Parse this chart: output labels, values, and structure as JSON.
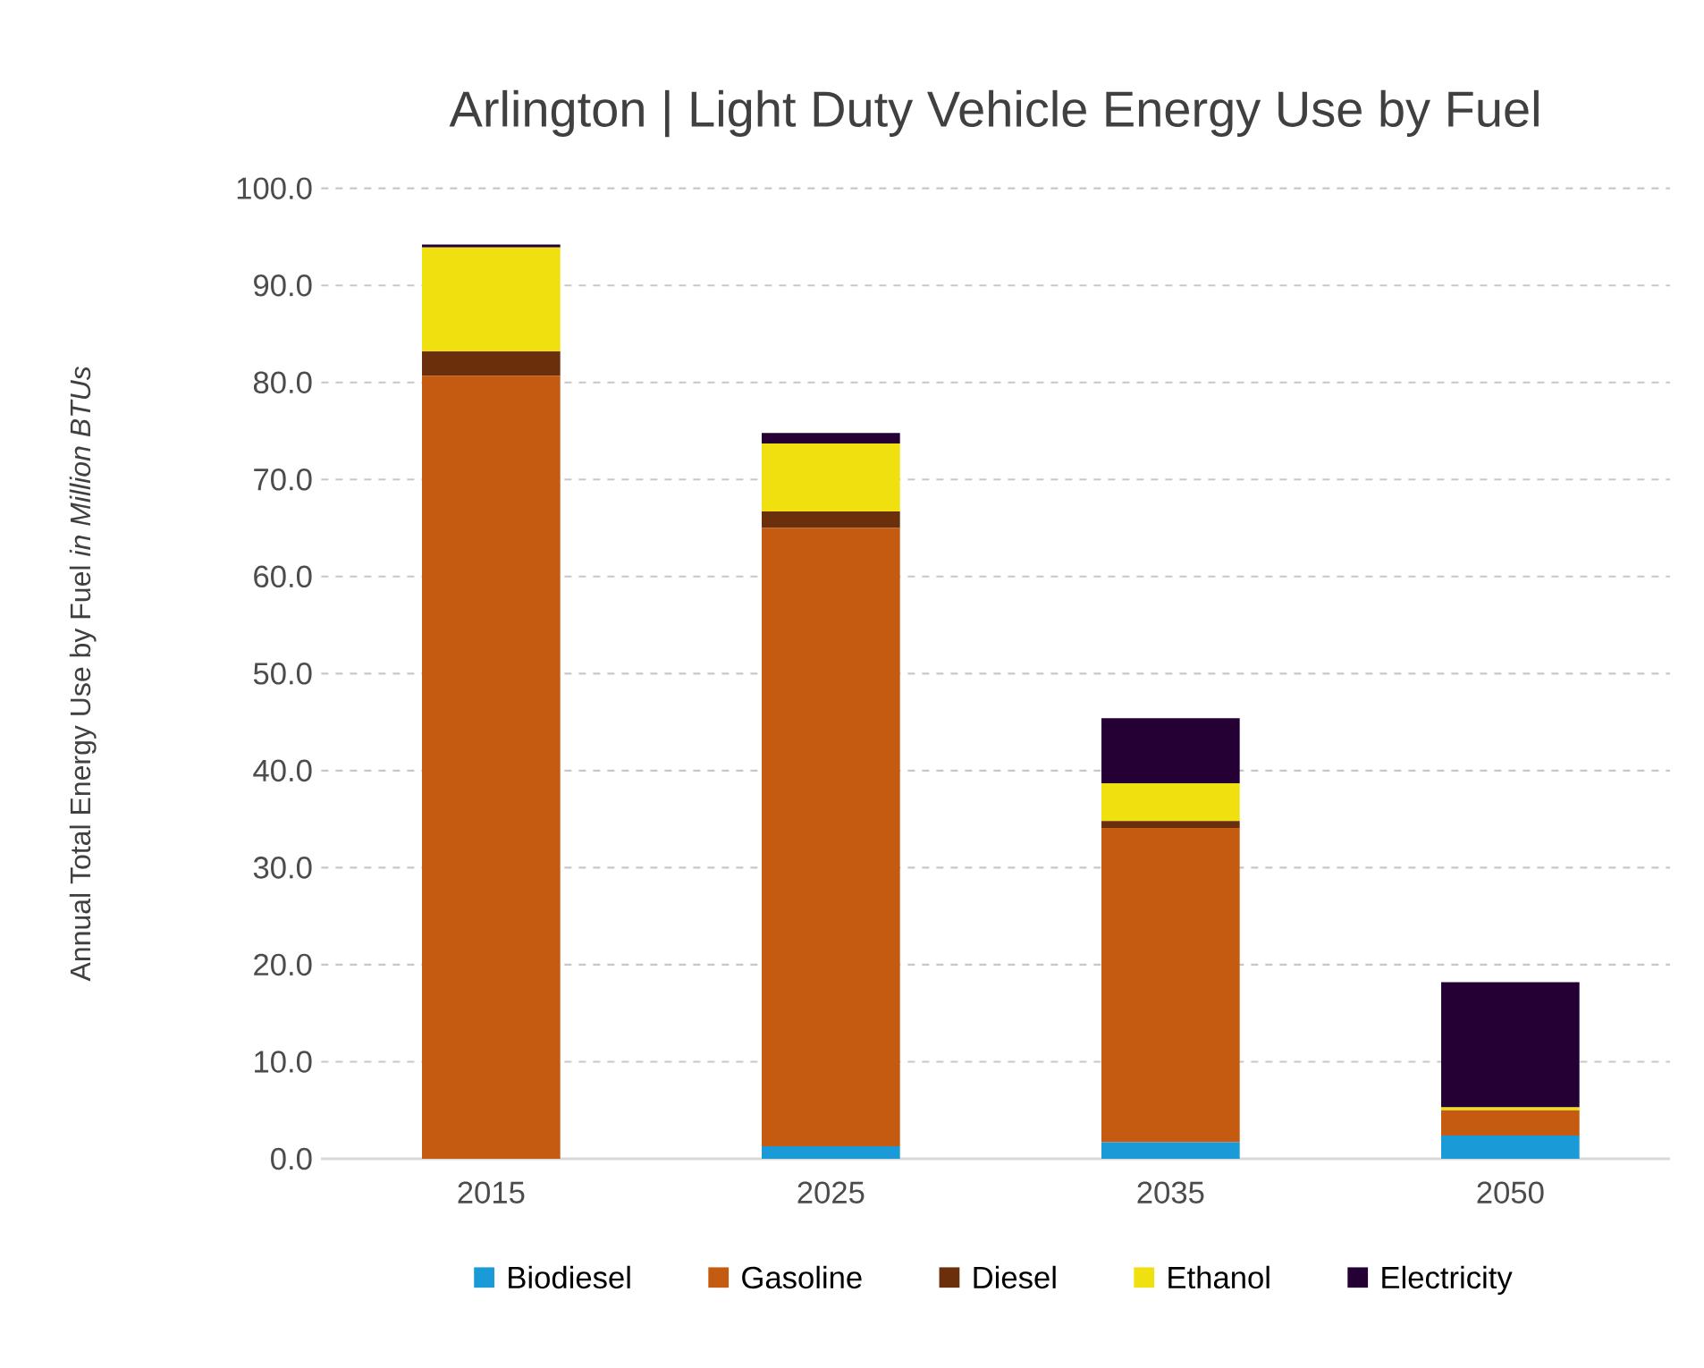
{
  "chart_data": {
    "type": "bar",
    "stacked": true,
    "title": "Arlington | Light Duty Vehicle Energy Use by Fuel",
    "ylabel": "Annual Total Energy Use by Fuel *in Million BTUs*",
    "categories": [
      "2015",
      "2025",
      "2035",
      "2050"
    ],
    "series": [
      {
        "name": "Biodiesel",
        "color": "#1a9ad6",
        "values": [
          0,
          1.3,
          1.7,
          2.4
        ]
      },
      {
        "name": "Gasoline",
        "color": "#c55a11",
        "values": [
          80.7,
          63.7,
          32.4,
          2.6
        ]
      },
      {
        "name": "Diesel",
        "color": "#6b2f0c",
        "values": [
          2.5,
          1.7,
          0.7,
          0
        ]
      },
      {
        "name": "Ethanol",
        "color": "#f0e010",
        "values": [
          10.7,
          7.0,
          3.9,
          0.3
        ]
      },
      {
        "name": "Electricity",
        "color": "#250035",
        "values": [
          0.3,
          1.1,
          6.7,
          12.9
        ]
      }
    ],
    "ylim": [
      0,
      100
    ],
    "yticks": [
      {
        "value": 0,
        "label": "0.0"
      },
      {
        "value": 10,
        "label": "10.0"
      },
      {
        "value": 20,
        "label": "20.0"
      },
      {
        "value": 30,
        "label": "30.0"
      },
      {
        "value": 40,
        "label": "40.0"
      },
      {
        "value": 50,
        "label": "50.0"
      },
      {
        "value": 60,
        "label": "60.0"
      },
      {
        "value": 70,
        "label": "70.0"
      },
      {
        "value": 80,
        "label": "80.0"
      },
      {
        "value": 90,
        "label": "90.0"
      },
      {
        "value": 100,
        "label": "100.0"
      }
    ],
    "grid": "y",
    "legend": "bottom"
  }
}
